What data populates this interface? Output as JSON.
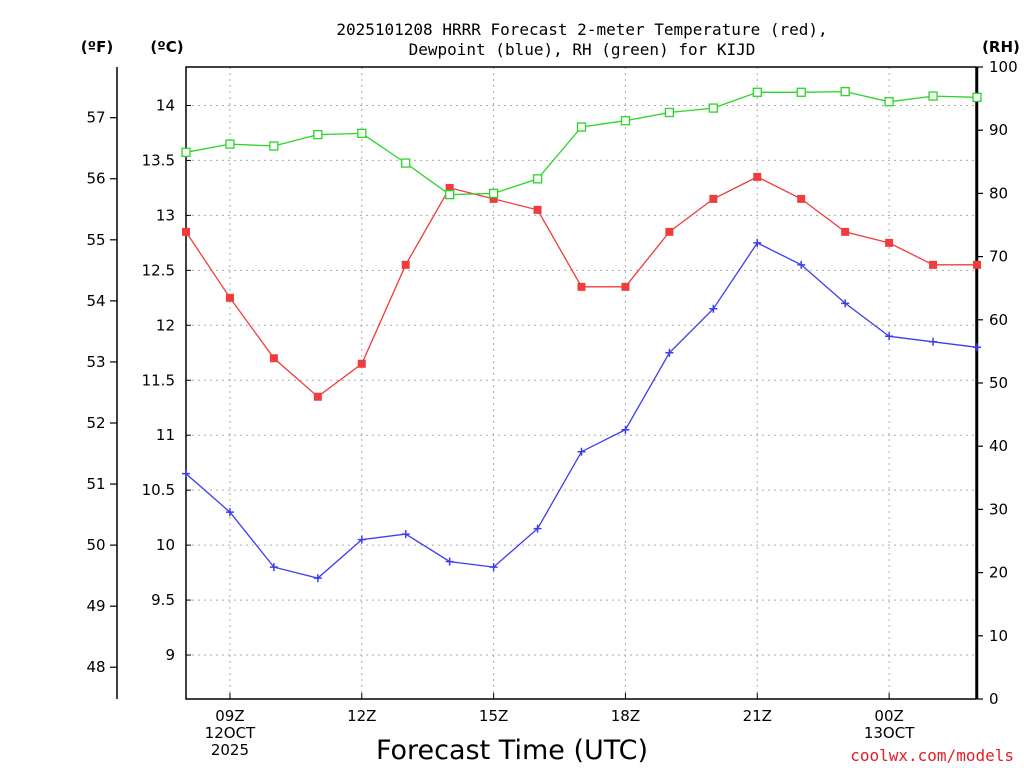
{
  "title_line1": "2025101208 HRRR Forecast 2-meter Temperature (red),",
  "title_line2": "Dewpoint (blue), RH (green) for KIJD",
  "units": {
    "left_outer": "(ºF)",
    "left_inner": "(ºC)",
    "right": "(RH)"
  },
  "xlabel": "Forecast Time (UTC)",
  "credit": "coolwx.com/models",
  "colors": {
    "temperature": "#f03c3c",
    "dewpoint": "#3c3cf0",
    "rh": "#28d628"
  },
  "chart_data": {
    "type": "line",
    "x": [
      "08Z",
      "09Z",
      "10Z",
      "11Z",
      "12Z",
      "13Z",
      "14Z",
      "15Z",
      "16Z",
      "17Z",
      "18Z",
      "19Z",
      "20Z",
      "21Z",
      "22Z",
      "23Z",
      "00Z",
      "01Z",
      "02Z"
    ],
    "x_ticks": [
      {
        "index": 1,
        "lines": [
          "09Z",
          "12OCT",
          "2025"
        ]
      },
      {
        "index": 4,
        "lines": [
          "12Z"
        ]
      },
      {
        "index": 7,
        "lines": [
          "15Z"
        ]
      },
      {
        "index": 10,
        "lines": [
          "18Z"
        ]
      },
      {
        "index": 13,
        "lines": [
          "21Z"
        ]
      },
      {
        "index": 16,
        "lines": [
          "00Z",
          "13OCT"
        ]
      }
    ],
    "y_celsius": {
      "ylim": [
        8.6,
        14.35
      ],
      "ticks": [
        9,
        9.5,
        10,
        10.5,
        11,
        11.5,
        12,
        12.5,
        13,
        13.5,
        14
      ]
    },
    "y_fahrenheit": {
      "ticks": [
        48,
        49,
        50,
        51,
        52,
        53,
        54,
        55,
        56,
        57
      ]
    },
    "y_rh": {
      "ylim": [
        0,
        100
      ],
      "ticks": [
        0,
        10,
        20,
        30,
        40,
        50,
        60,
        70,
        80,
        90,
        100
      ]
    },
    "grid": true,
    "series": [
      {
        "key": "temperature",
        "axis": "celsius",
        "marker": "square",
        "values": [
          12.85,
          12.25,
          11.7,
          11.35,
          11.65,
          12.55,
          13.25,
          13.15,
          13.05,
          12.35,
          12.35,
          12.85,
          13.15,
          13.35,
          13.15,
          12.85,
          12.75,
          12.55,
          12.55
        ]
      },
      {
        "key": "dewpoint",
        "axis": "celsius",
        "marker": "plus",
        "values": [
          10.65,
          10.3,
          9.8,
          9.7,
          10.05,
          10.1,
          9.85,
          9.8,
          10.15,
          10.85,
          11.05,
          11.75,
          12.15,
          12.75,
          12.55,
          12.2,
          11.9,
          11.85,
          11.8
        ]
      },
      {
        "key": "rh",
        "axis": "rh",
        "marker": "open-square",
        "values": [
          86.5,
          87.8,
          87.5,
          89.3,
          89.5,
          84.8,
          79.8,
          80.0,
          82.3,
          90.5,
          91.5,
          92.8,
          93.5,
          96.0,
          96.0,
          96.1,
          94.5,
          95.4,
          95.2
        ]
      }
    ]
  }
}
